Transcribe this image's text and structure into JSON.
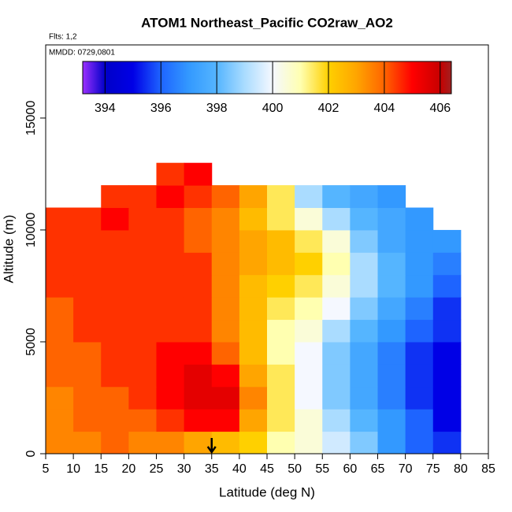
{
  "chart_data": {
    "type": "heatmap",
    "title": "ATOM1 Northeast_Pacific CO2raw_AO2",
    "subtitle": "Flts: 1,2",
    "annotation": "MMDD: 0729,0801",
    "x_label": "Latitude (deg N)",
    "y_label": "Altitude (m)",
    "xlim": [
      5,
      85
    ],
    "xticks": [
      5,
      10,
      15,
      20,
      25,
      30,
      35,
      40,
      45,
      50,
      55,
      60,
      65,
      70,
      75,
      80,
      85
    ],
    "ylim": [
      0,
      18270
    ],
    "yticks": [
      0,
      5000,
      10000,
      15000
    ],
    "lat_edges": [
      5,
      10,
      15,
      20,
      25,
      30,
      35,
      40,
      45,
      50,
      55,
      60,
      65,
      70,
      75,
      80
    ],
    "alt_edges": [
      0,
      1000,
      2000,
      3000,
      4000,
      5000,
      6000,
      7000,
      8000,
      9000,
      10000,
      11000,
      12000,
      13000
    ],
    "values": [
      [
        403.5,
        403.5,
        404,
        403.5,
        403.5,
        403,
        402.5,
        402,
        401,
        400.5,
        399.5,
        398.5,
        397,
        396,
        395.5
      ],
      [
        403.5,
        404,
        404,
        404,
        404.5,
        405,
        405,
        403,
        401.5,
        400.5,
        399,
        398,
        397,
        396,
        395
      ],
      [
        403.5,
        404,
        404,
        404.5,
        405,
        405.5,
        405.5,
        403.5,
        401.5,
        400,
        398.5,
        397.5,
        396.5,
        395.5,
        395
      ],
      [
        404,
        404,
        404.5,
        404.5,
        405,
        405.5,
        405,
        403,
        401.5,
        400,
        398.5,
        397.5,
        396.5,
        395.5,
        395
      ],
      [
        404,
        404,
        404.5,
        404.5,
        405,
        405,
        404,
        402.5,
        401,
        400,
        398.5,
        397.5,
        396.5,
        395.5,
        395
      ],
      [
        404,
        404.5,
        404.5,
        404.5,
        404.5,
        404.5,
        403.5,
        402.5,
        401,
        400.5,
        399,
        398,
        397,
        396,
        395.5
      ],
      [
        404,
        404.5,
        404.5,
        404.5,
        404.5,
        404.5,
        403.5,
        402.5,
        401.5,
        401,
        400,
        398.5,
        397.5,
        396.5,
        395.5
      ],
      [
        404.5,
        404.5,
        404.5,
        404.5,
        404.5,
        404.5,
        403.5,
        402.5,
        402,
        401.5,
        400.5,
        399,
        398,
        397,
        396
      ],
      [
        404.5,
        404.5,
        404.5,
        404.5,
        404.5,
        404.5,
        403.5,
        403,
        402.5,
        402,
        401,
        399,
        398,
        397,
        396.5
      ],
      [
        404.5,
        404.5,
        404.5,
        404.5,
        404.5,
        404,
        403.5,
        403,
        402.5,
        401.5,
        400.5,
        398.5,
        397.5,
        397,
        397
      ],
      [
        404.5,
        404.5,
        405,
        404.5,
        404.5,
        404,
        403.5,
        402.5,
        401.5,
        400.5,
        399,
        398,
        397.5,
        397,
        null
      ],
      [
        null,
        null,
        404.5,
        404.5,
        405,
        404.5,
        404,
        403,
        401.5,
        399,
        398,
        397.5,
        397,
        null,
        null
      ],
      [
        null,
        null,
        null,
        null,
        404.5,
        405,
        null,
        null,
        null,
        null,
        null,
        null,
        null,
        null,
        null
      ]
    ],
    "marker_x": 35,
    "colorbar": {
      "lim": [
        393.2,
        406.4
      ],
      "ticks": [
        394,
        396,
        398,
        400,
        402,
        404,
        406
      ],
      "color_stops": [
        [
          393.2,
          "#9b30ff"
        ],
        [
          394,
          "#0000c8"
        ],
        [
          395,
          "#0000e6"
        ],
        [
          396,
          "#1e64ff"
        ],
        [
          397,
          "#3399ff"
        ],
        [
          398,
          "#55b5ff"
        ],
        [
          399,
          "#aadcff"
        ],
        [
          400,
          "#f5f8ff"
        ],
        [
          401,
          "#ffffb0"
        ],
        [
          402,
          "#ffd000"
        ],
        [
          403,
          "#ffa500"
        ],
        [
          404,
          "#ff6400"
        ],
        [
          405,
          "#ff0000"
        ],
        [
          406,
          "#c80000"
        ],
        [
          406.4,
          "#a02020"
        ]
      ]
    }
  }
}
